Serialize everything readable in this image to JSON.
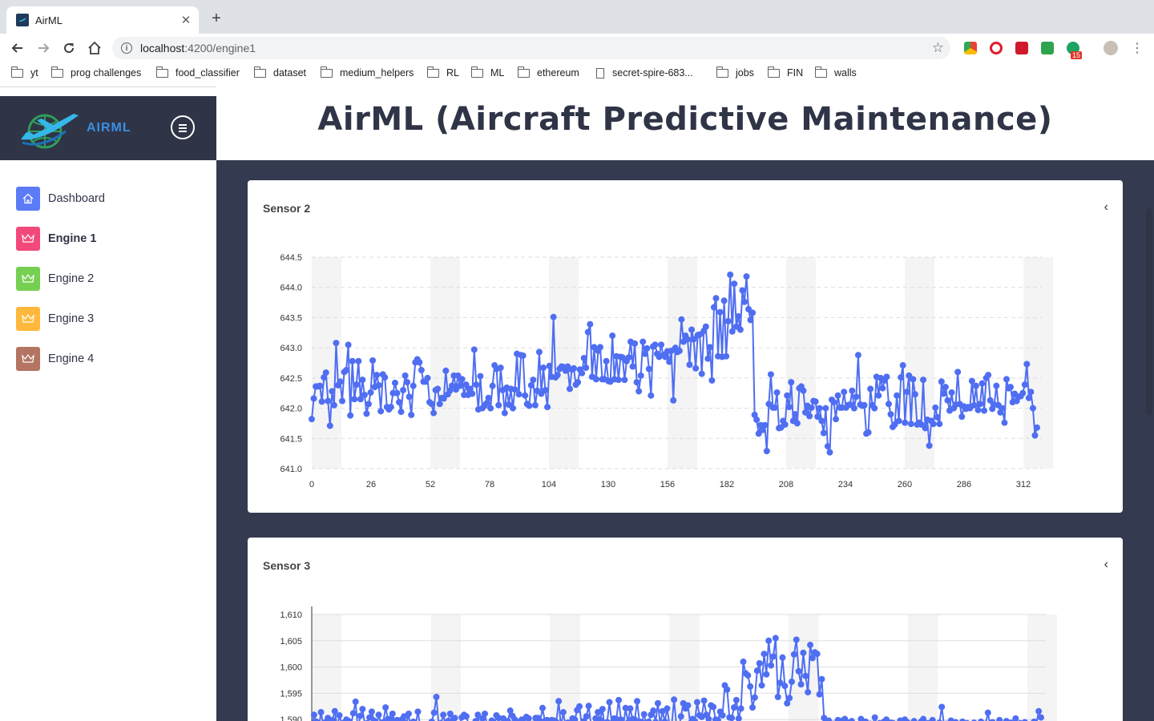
{
  "browser": {
    "tab_title": "AirML",
    "url_host": "localhost",
    "url_path": ":4200/engine1",
    "bookmarks": [
      "yt",
      "prog challenges",
      "food_classifier",
      "dataset",
      "medium_helpers",
      "RL",
      "ML",
      "ethereum",
      "secret-spire-683...",
      "jobs",
      "FIN",
      "walls"
    ],
    "extension_badge": "15"
  },
  "brand": {
    "name": "AIRML"
  },
  "header": {
    "title": "AirML (Aircraft Predictive Maintenance)"
  },
  "sidebar": {
    "items": [
      {
        "label": "Dashboard",
        "icon": "home-icon",
        "color": "#5b7bf7",
        "active": false
      },
      {
        "label": "Engine 1",
        "icon": "crown-icon",
        "color": "#f2497a",
        "active": true
      },
      {
        "label": "Engine 2",
        "icon": "crown-icon",
        "color": "#77cf52",
        "active": false
      },
      {
        "label": "Engine 3",
        "icon": "crown-icon",
        "color": "#ffb83b",
        "active": false
      },
      {
        "label": "Engine 4",
        "icon": "crown-icon",
        "color": "#b47462",
        "active": false
      }
    ]
  },
  "cards": [
    {
      "title": "Sensor 2"
    },
    {
      "title": "Sensor 3"
    }
  ],
  "chart_data": [
    {
      "type": "line",
      "title": "Sensor 2",
      "color": "#4f6ef2",
      "x_ticks": [
        "0",
        "26",
        "52",
        "78",
        "104",
        "130",
        "156",
        "182",
        "208",
        "234",
        "260",
        "286",
        "312"
      ],
      "y_ticks": [
        "641.0",
        "641.5",
        "642.0",
        "642.5",
        "643.0",
        "643.5",
        "644.0",
        "644.5"
      ],
      "ylim": [
        641.0,
        644.5
      ],
      "xlim": [
        0,
        318
      ],
      "series": [
        {
          "values": [
            641.82,
            642.16,
            642.36,
            642.36,
            642.37,
            642.11,
            642.51,
            642.59,
            642.12,
            641.71,
            642.28,
            642.05,
            643.08,
            642.38,
            642.44,
            642.12,
            642.6,
            642.63,
            643.05,
            641.88,
            642.78,
            642.15,
            642.39,
            642.78,
            642.15,
            642.47,
            642.22,
            641.91,
            642.07,
            642.26,
            642.79,
            642.35,
            642.55,
            642.38,
            641.95,
            642.56,
            642.51,
            642.02,
            641.98,
            642.02,
            642.25,
            642.42,
            642.25,
            642.1,
            641.94,
            642.3,
            642.54,
            642.43,
            642.19,
            641.89,
            642.37,
            642.76,
            642.81,
            642.76,
            642.63,
            642.44,
            642.44,
            642.5,
            642.1,
            642.07,
            641.92,
            642.3,
            642.32,
            642.07,
            642.17,
            642.16,
            642.62,
            642.23,
            642.29,
            642.37,
            642.54,
            642.31,
            642.54,
            642.37,
            642.48,
            642.22,
            642.39,
            642.22,
            642.32,
            642.24,
            642.97,
            642.39,
            641.98,
            642.53,
            642.0,
            642.04,
            642.08,
            642.17,
            642.0,
            642.37,
            642.71,
            642.65,
            642.05,
            642.67,
            642.3,
            641.92,
            642.34,
            642.06,
            642.32,
            642.0,
            642.31,
            642.9,
            642.23,
            642.88,
            642.87,
            642.21,
            642.07,
            642.04,
            642.38,
            642.47,
            642.05,
            642.29,
            642.93,
            642.24,
            642.67,
            642.3,
            642.02,
            642.7,
            642.52,
            643.51,
            642.51,
            642.55,
            642.65,
            642.69,
            642.68,
            642.62,
            642.69,
            642.32,
            642.64,
            642.66,
            642.39,
            642.43,
            642.64,
            642.58,
            642.83,
            642.67,
            643.26,
            643.39,
            642.52,
            643.01,
            642.48,
            642.95,
            643.01,
            642.48,
            642.48,
            642.78,
            642.45,
            642.44,
            643.2,
            642.48,
            642.86,
            642.47,
            642.85,
            642.84,
            642.47,
            642.78,
            642.84,
            643.1,
            642.69,
            643.07,
            642.43,
            642.28,
            642.54,
            643.1,
            642.9,
            642.99,
            642.65,
            642.21,
            643.02,
            643.05,
            642.9,
            642.85,
            643.05,
            642.88,
            642.85,
            642.94,
            642.77,
            642.95,
            642.13,
            643.0,
            642.93,
            642.95,
            643.47,
            643.1,
            643.2,
            643.14,
            642.72,
            643.3,
            643.14,
            642.66,
            643.21,
            643.22,
            642.57,
            643.28,
            643.35,
            642.82,
            643.01,
            642.46,
            643.67,
            643.82,
            642.86,
            643.59,
            642.85,
            643.78,
            642.86,
            643.44,
            644.21,
            643.27,
            644.06,
            643.35,
            643.52,
            643.3,
            643.95,
            643.76,
            644.18,
            643.64,
            643.46,
            643.58,
            641.89,
            641.81,
            641.58,
            641.72,
            641.64,
            641.72,
            641.29,
            642.07,
            642.56,
            642.01,
            642.01,
            642.26,
            641.67,
            641.68,
            641.79,
            641.73,
            642.21,
            642.02,
            642.43,
            641.79,
            641.9,
            641.75,
            642.33,
            642.36,
            642.29,
            641.93,
            642.04,
            641.87,
            642.01,
            642.12,
            642.11,
            641.86,
            642.0,
            641.79,
            641.59,
            642.0,
            641.37,
            641.27,
            642.14,
            642.1,
            641.82,
            642.21,
            642.01,
            642.01,
            642.27,
            642.01,
            642.05,
            642.06,
            642.29,
            642.0,
            642.19,
            642.88,
            642.06,
            642.04,
            642.05,
            641.58,
            641.6,
            642.32,
            642.05,
            642.0,
            642.52,
            642.21,
            642.5,
            642.33,
            642.46,
            642.52,
            642.07,
            641.9,
            641.69,
            641.73,
            642.21,
            641.79,
            642.51,
            642.71,
            641.76,
            642.27,
            642.54,
            641.74,
            642.48,
            642.23,
            641.73,
            641.76,
            641.73,
            642.47,
            641.67,
            641.81,
            641.38,
            641.79,
            641.74,
            642.01,
            641.85,
            641.74,
            642.44,
            642.24,
            642.35,
            642.13,
            641.96,
            642.26,
            642.0,
            642.06,
            642.6,
            642.07,
            641.86,
            642.03,
            641.99,
            642.02,
            642.0,
            642.45,
            642.05,
            642.37,
            641.97,
            642.07,
            642.41,
            641.96,
            642.5,
            642.55,
            642.13,
            641.99,
            642.06,
            642.37,
            642.05,
            641.93,
            642.0,
            641.76,
            642.48,
            642.33,
            642.35,
            642.1,
            642.24,
            642.12,
            642.19,
            642.2,
            642.25,
            642.39,
            642.73,
            642.17,
            642.27,
            642.0,
            641.55,
            641.68
          ]
        }
      ]
    },
    {
      "type": "line",
      "title": "Sensor 3",
      "color": "#4f6ef2",
      "y_ticks": [
        "1,590",
        "1,595",
        "1,600",
        "1,605",
        "1,610"
      ],
      "ylim": [
        1585,
        1610
      ],
      "xlim": [
        0,
        318
      ],
      "series": [
        {
          "values": [
            1588.4,
            1590.9,
            1589.6,
            1588.2,
            1591.4,
            1588.8,
            1589.5,
            1590.3,
            1588.1,
            1589.9,
            1591.6,
            1588.5,
            1590.8,
            1589.2,
            1589.4,
            1590.0,
            1589.7,
            1588.9,
            1591.2,
            1593.4,
            1588.0,
            1590.7,
            1592.0,
            1589.1,
            1589.3,
            1590.4,
            1591.5,
            1589.8,
            1588.6,
            1590.9,
            1589.3,
            1589.5,
            1592.3,
            1590.1,
            1590.1,
            1591.1,
            1589.6,
            1589.9,
            1588.4,
            1590.0,
            1590.6,
            1589.2,
            1591.1,
            1587.3,
            1589.6,
            1588.9,
            1591.5,
            1588.7,
            1589.1,
            1587.0,
            1587.2,
            1588.8,
            1589.6,
            1591.3,
            1594.3,
            1589.1,
            1589.3,
            1590.9,
            1588.8,
            1589.7,
            1591.1,
            1589.8,
            1590.3,
            1588.6,
            1589.0,
            1590.4,
            1590.9,
            1590.6,
            1589.0,
            1588.3,
            1588.5,
            1589.7,
            1590.9,
            1587.6,
            1590.2,
            1591.1,
            1589.0,
            1586.0,
            1589.8,
            1588.4,
            1590.8,
            1590.3,
            1586.7,
            1590.2,
            1589.2,
            1589.7,
            1591.7,
            1590.7,
            1590.0,
            1589.6,
            1589.5,
            1590.0,
            1589.1,
            1590.5,
            1590.2,
            1589.0,
            1589.2,
            1590.3,
            1590.3,
            1589.7,
            1592.2,
            1589.7,
            1589.9,
            1589.4,
            1589.9,
            1589.8,
            1589.5,
            1593.5,
            1588.6,
            1591.4,
            1588.7,
            1589.4,
            1587.7,
            1590.2,
            1590.0,
            1591.8,
            1592.5,
            1589.0,
            1589.7,
            1590.6,
            1592.6,
            1589.1,
            1588.4,
            1590.2,
            1591.4,
            1589.9,
            1592.0,
            1587.9,
            1589.5,
            1593.3,
            1589.3,
            1590.2,
            1590.1,
            1593.7,
            1590.0,
            1588.6,
            1592.2,
            1589.4,
            1592.1,
            1590.1,
            1590.0,
            1593.5,
            1589.6,
            1589.5,
            1591.0,
            1588.9,
            1589.6,
            1590.9,
            1591.7,
            1589.5,
            1593.1,
            1589.0,
            1591.6,
            1589.6,
            1592.1,
            1589.1,
            1589.0,
            1593.8,
            1589.0,
            1588.2,
            1590.6,
            1593.1,
            1592.1,
            1592.7,
            1589.3,
            1590.1,
            1589.7,
            1593.3,
            1590.8,
            1590.5,
            1593.6,
            1590.9,
            1590.1,
            1592.7,
            1592.4,
            1590.0,
            1589.9,
            1591.5,
            1590.8,
            1596.5,
            1595.7,
            1590.4,
            1590.3,
            1592.3,
            1593.7,
            1590.2,
            1592.1,
            1601.0,
            1598.8,
            1598.4,
            1596.3,
            1592.3,
            1594.2,
            1599.3,
            1600.7,
            1596.5,
            1602.5,
            1598.6,
            1605.0,
            1600.3,
            1602.0,
            1605.5,
            1594.3,
            1597.0,
            1601.8,
            1596.4,
            1593.1,
            1594.1,
            1597.2,
            1602.4,
            1605.2,
            1599.2,
            1596.7,
            1602.7,
            1598.3,
            1595.2,
            1604.2,
            1601.7,
            1602.8,
            1602.5,
            1594.8,
            1597.7,
            1590.3,
            1589.2,
            1589.8,
            1588.7,
            1589.2,
            1588.4,
            1589.9,
            1588.1,
            1589.8,
            1590.1,
            1589.5,
            1588.2,
            1589.7,
            1589.1,
            1588.9,
            1588.6,
            1590.1,
            1589.4,
            1589.6,
            1588.8,
            1589.2,
            1589.0,
            1590.4,
            1588.9,
            1589.3,
            1588.5,
            1589.6,
            1590.0,
            1588.7,
            1589.4,
            1589.3,
            1588.2,
            1589.1,
            1589.8,
            1588.9,
            1590.0,
            1589.5,
            1588.6,
            1589.2,
            1589.7,
            1588.4,
            1588.9,
            1589.6,
            1590.1,
            1588.8,
            1589.3,
            1588.5,
            1589.9,
            1589.1,
            1588.7,
            1589.4,
            1592.4,
            1588.9,
            1589.2,
            1588.6,
            1589.8,
            1588.3,
            1589.5,
            1589.0,
            1588.8,
            1589.6,
            1588.5,
            1589.3,
            1589.1,
            1588.9,
            1589.4,
            1588.7,
            1589.0,
            1589.6,
            1588.4,
            1589.2,
            1591.3,
            1588.8,
            1589.5,
            1588.6,
            1589.1,
            1589.9,
            1588.3,
            1589.2,
            1589.7,
            1588.9,
            1589.4,
            1589.0,
            1590.2,
            1588.6,
            1589.3,
            1588.8,
            1589.5,
            1588.5,
            1589.1,
            1588.7,
            1589.6,
            1589.2,
            1591.6,
            1590.4
          ]
        }
      ]
    }
  ]
}
